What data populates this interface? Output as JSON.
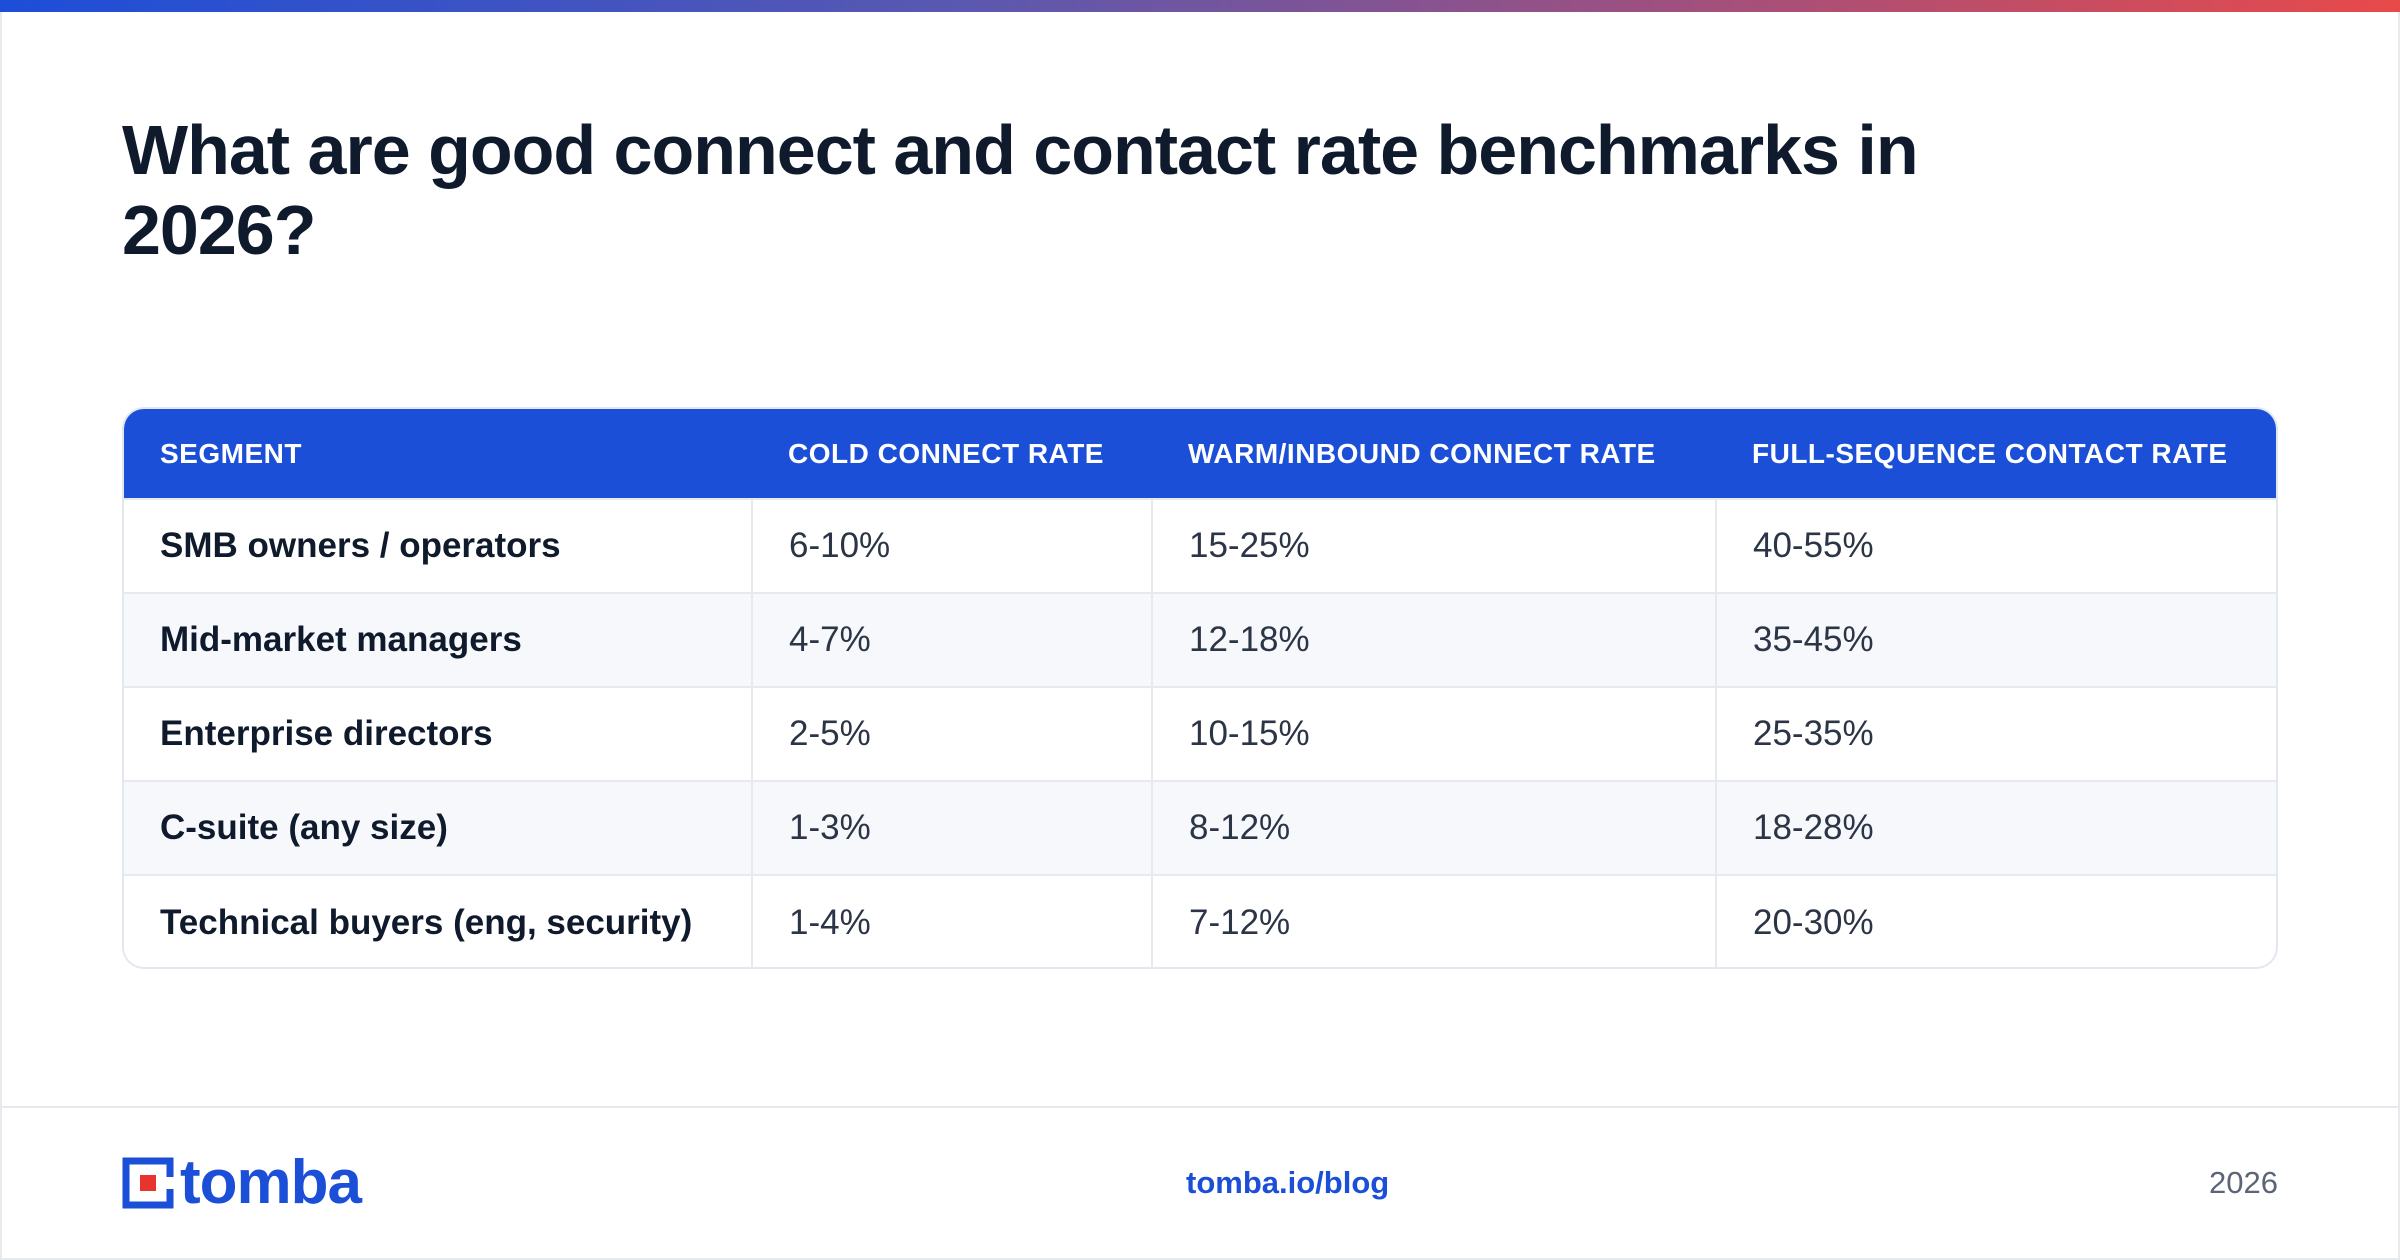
{
  "title": "What are good connect and contact rate benchmarks in 2026?",
  "table": {
    "headers": [
      "SEGMENT",
      "COLD CONNECT RATE",
      "WARM/INBOUND CONNECT RATE",
      "FULL-SEQUENCE CONTACT RATE"
    ],
    "rows": [
      [
        "SMB owners / operators",
        "6-10%",
        "15-25%",
        "40-55%"
      ],
      [
        "Mid-market managers",
        "4-7%",
        "12-18%",
        "35-45%"
      ],
      [
        "Enterprise directors",
        "2-5%",
        "10-15%",
        "25-35%"
      ],
      [
        "C-suite (any size)",
        "1-3%",
        "8-12%",
        "18-28%"
      ],
      [
        "Technical buyers (eng, security)",
        "1-4%",
        "7-12%",
        "20-30%"
      ]
    ]
  },
  "footer": {
    "logo_text": "tomba",
    "logo_icon": "tomba-logo-icon",
    "link": "tomba.io/blog",
    "year": "2026"
  },
  "colors": {
    "accent": "#1b4fd8",
    "logo_red": "#e8342c",
    "gradient_start": "#1d4ed8",
    "gradient_end": "#e84a4a",
    "row_alt": "#f6f8fb"
  }
}
